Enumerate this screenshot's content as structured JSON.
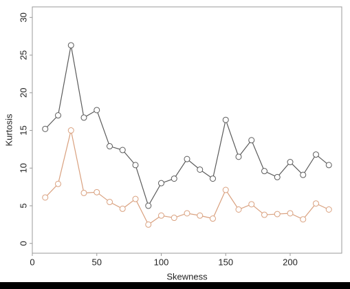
{
  "chart_data": {
    "type": "line",
    "x_label": "Skewness",
    "y_label": "Kurtosis",
    "x": [
      10,
      20,
      30,
      40,
      50,
      60,
      70,
      80,
      90,
      100,
      110,
      120,
      130,
      140,
      150,
      160,
      170,
      180,
      190,
      200,
      210,
      220,
      230
    ],
    "series": [
      {
        "color": "#5a5a5a",
        "values": [
          15.2,
          17.0,
          26.3,
          16.7,
          17.7,
          12.9,
          12.4,
          10.4,
          5.0,
          8.0,
          8.6,
          11.2,
          9.8,
          8.6,
          16.4,
          11.5,
          13.7,
          9.6,
          8.8,
          10.8,
          9.1,
          11.8,
          10.4
        ]
      },
      {
        "color": "#d9a07e",
        "values": [
          6.1,
          7.9,
          15.0,
          6.7,
          6.8,
          5.5,
          4.6,
          5.9,
          2.5,
          3.7,
          3.4,
          4.0,
          3.7,
          3.3,
          7.1,
          4.5,
          5.2,
          3.8,
          3.9,
          4.0,
          3.2,
          5.3,
          4.5
        ]
      }
    ],
    "xlim": [
      0,
      240
    ],
    "xticks": [
      0,
      50,
      100,
      150,
      200
    ],
    "ylim": [
      -1.3,
      31.4
    ],
    "yticks": [
      0,
      5,
      10,
      15,
      20,
      25,
      30
    ]
  }
}
